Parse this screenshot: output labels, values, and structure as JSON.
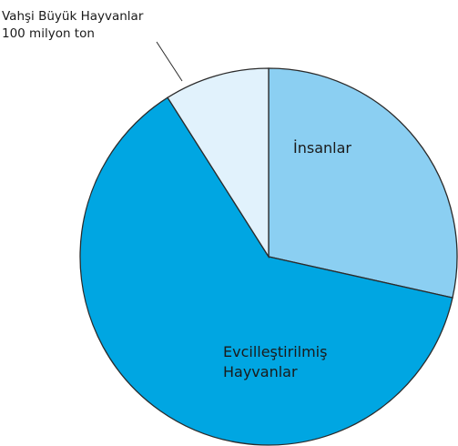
{
  "chart_data": {
    "type": "pie",
    "title": "",
    "slices": [
      {
        "label_lines": [
          "İnsanlar"
        ],
        "value": 28.5,
        "color": "#8bcff2"
      },
      {
        "label_lines": [
          "Evcilleştirilmiş",
          "Hayvanlar"
        ],
        "value": 62.5,
        "color": "#00a6e2"
      },
      {
        "label_lines": [
          "Vahşi Büyük Hayvanlar",
          "100 milyon ton"
        ],
        "value": 9.0,
        "color": "#e1f2fc"
      }
    ],
    "start_angle_deg": 0,
    "direction": "clockwise",
    "legend": "none"
  }
}
